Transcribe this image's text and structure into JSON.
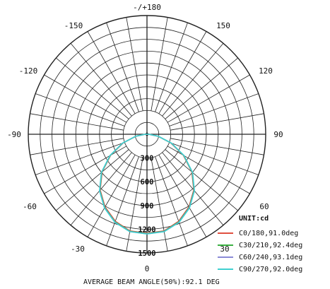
{
  "chart_data": {
    "type": "polar",
    "angle_labels": [
      {
        "text": "-/+180",
        "angle": 180
      },
      {
        "text": "150",
        "angle": 150
      },
      {
        "text": "-150",
        "angle": -150
      },
      {
        "text": "120",
        "angle": 120
      },
      {
        "text": "-120",
        "angle": -120
      },
      {
        "text": "90",
        "angle": 90
      },
      {
        "text": "-90",
        "angle": -90
      },
      {
        "text": "60",
        "angle": 60
      },
      {
        "text": "-60",
        "angle": -60
      },
      {
        "text": "30",
        "angle": 30
      },
      {
        "text": "-30",
        "angle": -30
      },
      {
        "text": "0",
        "angle": 0
      }
    ],
    "radial_max": 1500,
    "ring_labels": [
      {
        "text": "300",
        "value": 300
      },
      {
        "text": "600",
        "value": 600
      },
      {
        "text": "900",
        "value": 900
      },
      {
        "text": "1200",
        "value": 1200
      },
      {
        "text": "1500",
        "value": 1500
      }
    ],
    "unit_label": "UNIT:cd",
    "series": [
      {
        "name": "C0/180,91.0deg",
        "color": "#e05040",
        "angles": [
          0,
          10,
          20,
          30,
          40,
          50,
          60,
          70,
          80,
          90
        ],
        "values": [
          1250,
          1240,
          1170,
          1060,
          920,
          740,
          530,
          320,
          140,
          20
        ]
      },
      {
        "name": "C30/210,92.4deg",
        "color": "#3cb043",
        "angles": [
          0,
          10,
          20,
          30,
          40,
          50,
          60,
          70,
          80,
          90
        ],
        "values": [
          1255,
          1245,
          1178,
          1068,
          926,
          746,
          536,
          325,
          142,
          22
        ]
      },
      {
        "name": "C60/240,93.1deg",
        "color": "#8a8ad6",
        "angles": [
          0,
          10,
          20,
          30,
          40,
          50,
          60,
          70,
          80,
          90
        ],
        "values": [
          1258,
          1248,
          1182,
          1072,
          930,
          750,
          540,
          328,
          144,
          22
        ]
      },
      {
        "name": "C90/270,92.0deg",
        "color": "#3fd0d0",
        "angles": [
          0,
          10,
          20,
          30,
          40,
          50,
          60,
          70,
          80,
          90
        ],
        "values": [
          1260,
          1250,
          1185,
          1075,
          933,
          752,
          542,
          330,
          145,
          23
        ]
      }
    ],
    "footer": "AVERAGE BEAM ANGLE(50%):92.1 DEG"
  }
}
